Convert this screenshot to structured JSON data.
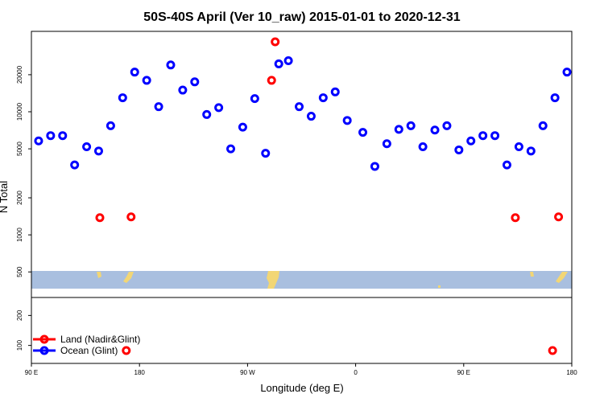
{
  "chart_data": {
    "type": "scatter",
    "title": "50S-40S April (Ver 10_raw)   2015-01-01 to 2020-12-31",
    "xlabel": "Longitude (deg E)",
    "ylabel": "N Total",
    "x_ticks": [
      {
        "value": 90,
        "label": "90 E"
      },
      {
        "value": 180,
        "label": "180"
      },
      {
        "value": 270,
        "label": "90 W"
      },
      {
        "value": 360,
        "label": "0"
      },
      {
        "value": 450,
        "label": "90 E"
      },
      {
        "value": 540,
        "label": "180"
      }
    ],
    "xlim": [
      90,
      540
    ],
    "y_scale": "log",
    "ylim": [
      310,
      45000
    ],
    "y_ticks": [
      {
        "value": 500,
        "label": "500"
      },
      {
        "value": 1000,
        "label": "1000"
      },
      {
        "value": 2000,
        "label": "2000"
      },
      {
        "value": 5000,
        "label": "5000"
      },
      {
        "value": 10000,
        "label": "10000"
      },
      {
        "value": 20000,
        "label": "20000"
      }
    ],
    "lower_panel": {
      "ylim": [
        40,
        260
      ],
      "y_ticks": [
        {
          "value": 100,
          "label": "100"
        },
        {
          "value": 200,
          "label": "200"
        }
      ]
    },
    "colors": {
      "land": "#ff0000",
      "ocean": "#0000ff",
      "map_sea": "#a9bfdf",
      "map_land": "#f2d675"
    },
    "legend": {
      "position": "bottom-left"
    },
    "series": [
      {
        "name": "Land (Nadir&Glint)",
        "color": "#ff0000",
        "points": [
          {
            "x": 147,
            "y": 1380
          },
          {
            "x": 173,
            "y": 1400
          },
          {
            "x": 290,
            "y": 18000
          },
          {
            "x": 293,
            "y": 37000
          },
          {
            "x": 493,
            "y": 1380
          },
          {
            "x": 529,
            "y": 1400
          }
        ],
        "lower_points": [
          {
            "x": 169,
            "y": 83
          },
          {
            "x": 524,
            "y": 83
          }
        ]
      },
      {
        "name": "Ocean (Glint)",
        "color": "#0000ff",
        "points": [
          {
            "x": 96,
            "y": 5800
          },
          {
            "x": 106,
            "y": 6400
          },
          {
            "x": 116,
            "y": 6400
          },
          {
            "x": 126,
            "y": 3700
          },
          {
            "x": 136,
            "y": 5200
          },
          {
            "x": 146,
            "y": 4800
          },
          {
            "x": 156,
            "y": 7700
          },
          {
            "x": 166,
            "y": 13000
          },
          {
            "x": 176,
            "y": 21000
          },
          {
            "x": 186,
            "y": 18000
          },
          {
            "x": 196,
            "y": 11000
          },
          {
            "x": 206,
            "y": 24000
          },
          {
            "x": 216,
            "y": 15000
          },
          {
            "x": 226,
            "y": 17500
          },
          {
            "x": 236,
            "y": 9500
          },
          {
            "x": 246,
            "y": 10800
          },
          {
            "x": 256,
            "y": 5000
          },
          {
            "x": 266,
            "y": 7500
          },
          {
            "x": 276,
            "y": 12800
          },
          {
            "x": 285,
            "y": 4600
          },
          {
            "x": 296,
            "y": 24500
          },
          {
            "x": 304,
            "y": 26000
          },
          {
            "x": 313,
            "y": 11000
          },
          {
            "x": 323,
            "y": 9200
          },
          {
            "x": 333,
            "y": 13000
          },
          {
            "x": 343,
            "y": 14500
          },
          {
            "x": 353,
            "y": 8500
          },
          {
            "x": 366,
            "y": 6800
          },
          {
            "x": 376,
            "y": 3600
          },
          {
            "x": 386,
            "y": 5500
          },
          {
            "x": 396,
            "y": 7200
          },
          {
            "x": 406,
            "y": 7700
          },
          {
            "x": 416,
            "y": 5200
          },
          {
            "x": 426,
            "y": 7100
          },
          {
            "x": 436,
            "y": 7700
          },
          {
            "x": 446,
            "y": 4900
          },
          {
            "x": 456,
            "y": 5800
          },
          {
            "x": 466,
            "y": 6400
          },
          {
            "x": 476,
            "y": 6400
          },
          {
            "x": 486,
            "y": 3700
          },
          {
            "x": 496,
            "y": 5200
          },
          {
            "x": 506,
            "y": 4800
          },
          {
            "x": 516,
            "y": 7700
          },
          {
            "x": 526,
            "y": 13000
          },
          {
            "x": 536,
            "y": 21000
          }
        ]
      }
    ]
  }
}
